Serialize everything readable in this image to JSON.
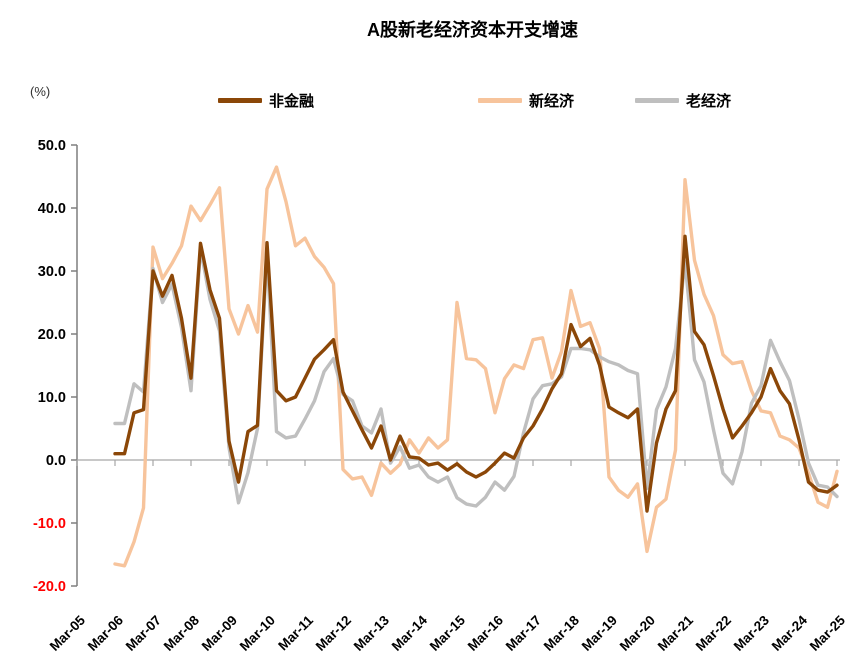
{
  "title": "A股新老经济资本开支增速",
  "y_axis_unit": "(%)",
  "legend": {
    "items": [
      {
        "id": "non-financial",
        "label": "非金融",
        "color": "#8B4708"
      },
      {
        "id": "new-economy",
        "label": "新经济",
        "color": "#F7C49C"
      },
      {
        "id": "old-economy",
        "label": "老经济",
        "color": "#BFBFBF"
      }
    ]
  },
  "chart_data": {
    "type": "line",
    "title": "A股新老经济资本开支增速",
    "ylabel": "(%)",
    "ylim": [
      -20,
      50
    ],
    "grid": "zero-line only",
    "legend_position": "top",
    "frequency": "quarterly",
    "data_starts": "Mar-06",
    "x_tick_labels": [
      "Mar-05",
      "Mar-06",
      "Mar-07",
      "Mar-08",
      "Mar-09",
      "Mar-10",
      "Mar-11",
      "Mar-12",
      "Mar-13",
      "Mar-14",
      "Mar-15",
      "Mar-16",
      "Mar-17",
      "Mar-18",
      "Mar-19",
      "Mar-20",
      "Mar-21",
      "Mar-22",
      "Mar-23",
      "Mar-24",
      "Mar-25"
    ],
    "y_tick_labels": [
      "50.0",
      "40.0",
      "30.0",
      "20.0",
      "10.0",
      "0.0",
      "-10.0",
      "-20.0"
    ],
    "colors": {
      "axis": "#7F7F7F",
      "zero_line": "#A6A6A6",
      "label": "#000000",
      "negative_label": "#FF0000"
    },
    "series": [
      {
        "id": "non-financial",
        "name": "非金融",
        "color": "#8B4708",
        "values": [
          1.0,
          1.0,
          7.5,
          8.0,
          30.0,
          26.0,
          29.3,
          22.5,
          13.0,
          34.4,
          27.0,
          22.5,
          3.0,
          -3.5,
          4.5,
          5.5,
          34.5,
          11.0,
          9.4,
          10.0,
          13.0,
          16.0,
          17.5,
          19.1,
          10.8,
          7.8,
          4.8,
          1.9,
          5.4,
          0.0,
          3.8,
          0.5,
          0.3,
          -0.8,
          -0.5,
          -1.6,
          -0.6,
          -1.9,
          -2.7,
          -1.9,
          -0.5,
          1.1,
          0.3,
          3.5,
          5.4,
          8.1,
          11.3,
          13.7,
          21.5,
          18.0,
          19.3,
          15.1,
          8.4,
          7.5,
          6.7,
          8.1,
          -8.1,
          2.7,
          8.1,
          11.0,
          35.5,
          20.4,
          18.3,
          13.4,
          8.1,
          3.5,
          5.4,
          7.5,
          10.0,
          14.5,
          11.0,
          8.9,
          3.2,
          -3.5,
          -4.8,
          -5.1,
          -4.0
        ]
      },
      {
        "id": "new-economy",
        "name": "新经济",
        "color": "#F7C49C",
        "values": [
          -16.5,
          -16.8,
          -13.0,
          -7.6,
          33.8,
          28.8,
          31.2,
          34.0,
          40.3,
          38.0,
          40.5,
          43.2,
          24.0,
          20.0,
          24.5,
          20.3,
          43.0,
          46.5,
          41.0,
          34.0,
          35.2,
          32.3,
          30.6,
          28.0,
          -1.5,
          -3.0,
          -2.7,
          -5.6,
          -0.5,
          -2.1,
          -0.7,
          3.2,
          1.1,
          3.5,
          1.9,
          3.2,
          25.0,
          16.1,
          15.9,
          14.5,
          7.5,
          12.9,
          15.1,
          14.5,
          19.1,
          19.4,
          13.0,
          17.2,
          26.9,
          21.2,
          21.8,
          17.7,
          -2.7,
          -4.8,
          -5.9,
          -3.8,
          -14.5,
          -7.5,
          -6.2,
          1.6,
          44.5,
          31.7,
          26.3,
          22.9,
          16.7,
          15.3,
          15.6,
          11.0,
          7.8,
          7.5,
          3.8,
          3.2,
          1.9,
          -2.1,
          -6.7,
          -7.5,
          -1.8
        ]
      },
      {
        "id": "old-economy",
        "name": "老经济",
        "color": "#BFBFBF",
        "values": [
          5.8,
          5.8,
          12.1,
          10.8,
          30.4,
          25.0,
          27.9,
          21.0,
          11.0,
          33.6,
          25.5,
          20.5,
          2.0,
          -6.8,
          -2.0,
          5.0,
          32.8,
          4.5,
          3.5,
          3.8,
          6.5,
          9.4,
          14.0,
          16.1,
          10.4,
          9.4,
          5.4,
          4.3,
          8.1,
          -0.5,
          2.1,
          -1.3,
          -0.8,
          -2.7,
          -3.5,
          -2.7,
          -6.0,
          -7.0,
          -7.3,
          -5.9,
          -3.5,
          -4.8,
          -2.6,
          4.3,
          9.7,
          11.8,
          12.1,
          13.2,
          17.7,
          17.7,
          17.5,
          16.4,
          15.6,
          15.1,
          14.2,
          13.7,
          -4.5,
          8.0,
          11.6,
          17.7,
          31.5,
          15.9,
          12.4,
          4.8,
          -2.1,
          -3.8,
          1.3,
          9.0,
          11.8,
          19.0,
          15.6,
          12.6,
          6.5,
          -0.5,
          -4.0,
          -4.3,
          -5.8
        ]
      }
    ]
  }
}
